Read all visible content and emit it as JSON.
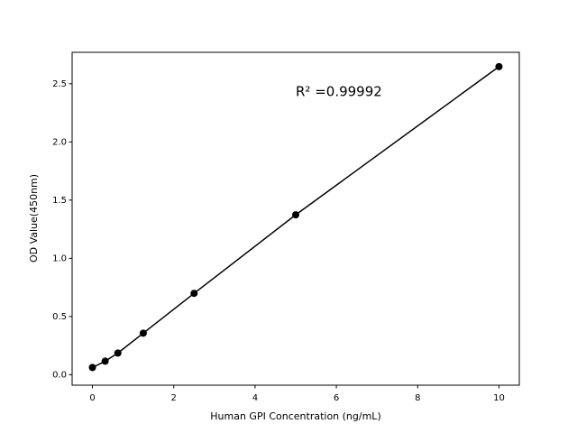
{
  "chart_data": {
    "type": "line",
    "annotation": "R² =0.99992",
    "x_label": "Human GPI Concentration (ng/mL)",
    "y_label": "OD Value(450nm)",
    "x": [
      0,
      0.3125,
      0.625,
      1.25,
      2.5,
      5,
      10
    ],
    "series": [
      {
        "color": "#000000",
        "values": [
          0.062,
          0.116,
          0.186,
          0.357,
          0.699,
          1.374,
          2.647
        ]
      }
    ],
    "markers": true,
    "xlim": [
      -0.5,
      10.5
    ],
    "xticks": [
      0,
      2,
      4,
      6,
      8,
      10
    ],
    "ylim": [
      -0.09,
      2.77
    ],
    "yticks": [
      {
        "value": 0,
        "label": "0.0"
      },
      {
        "value": 0.5,
        "label": "0.5"
      },
      {
        "value": 1,
        "label": "1.0"
      },
      {
        "value": 1.5,
        "label": "1.5"
      },
      {
        "value": 2,
        "label": "2.0"
      },
      {
        "value": 2.5,
        "label": "2.5"
      }
    ],
    "grid": false
  }
}
